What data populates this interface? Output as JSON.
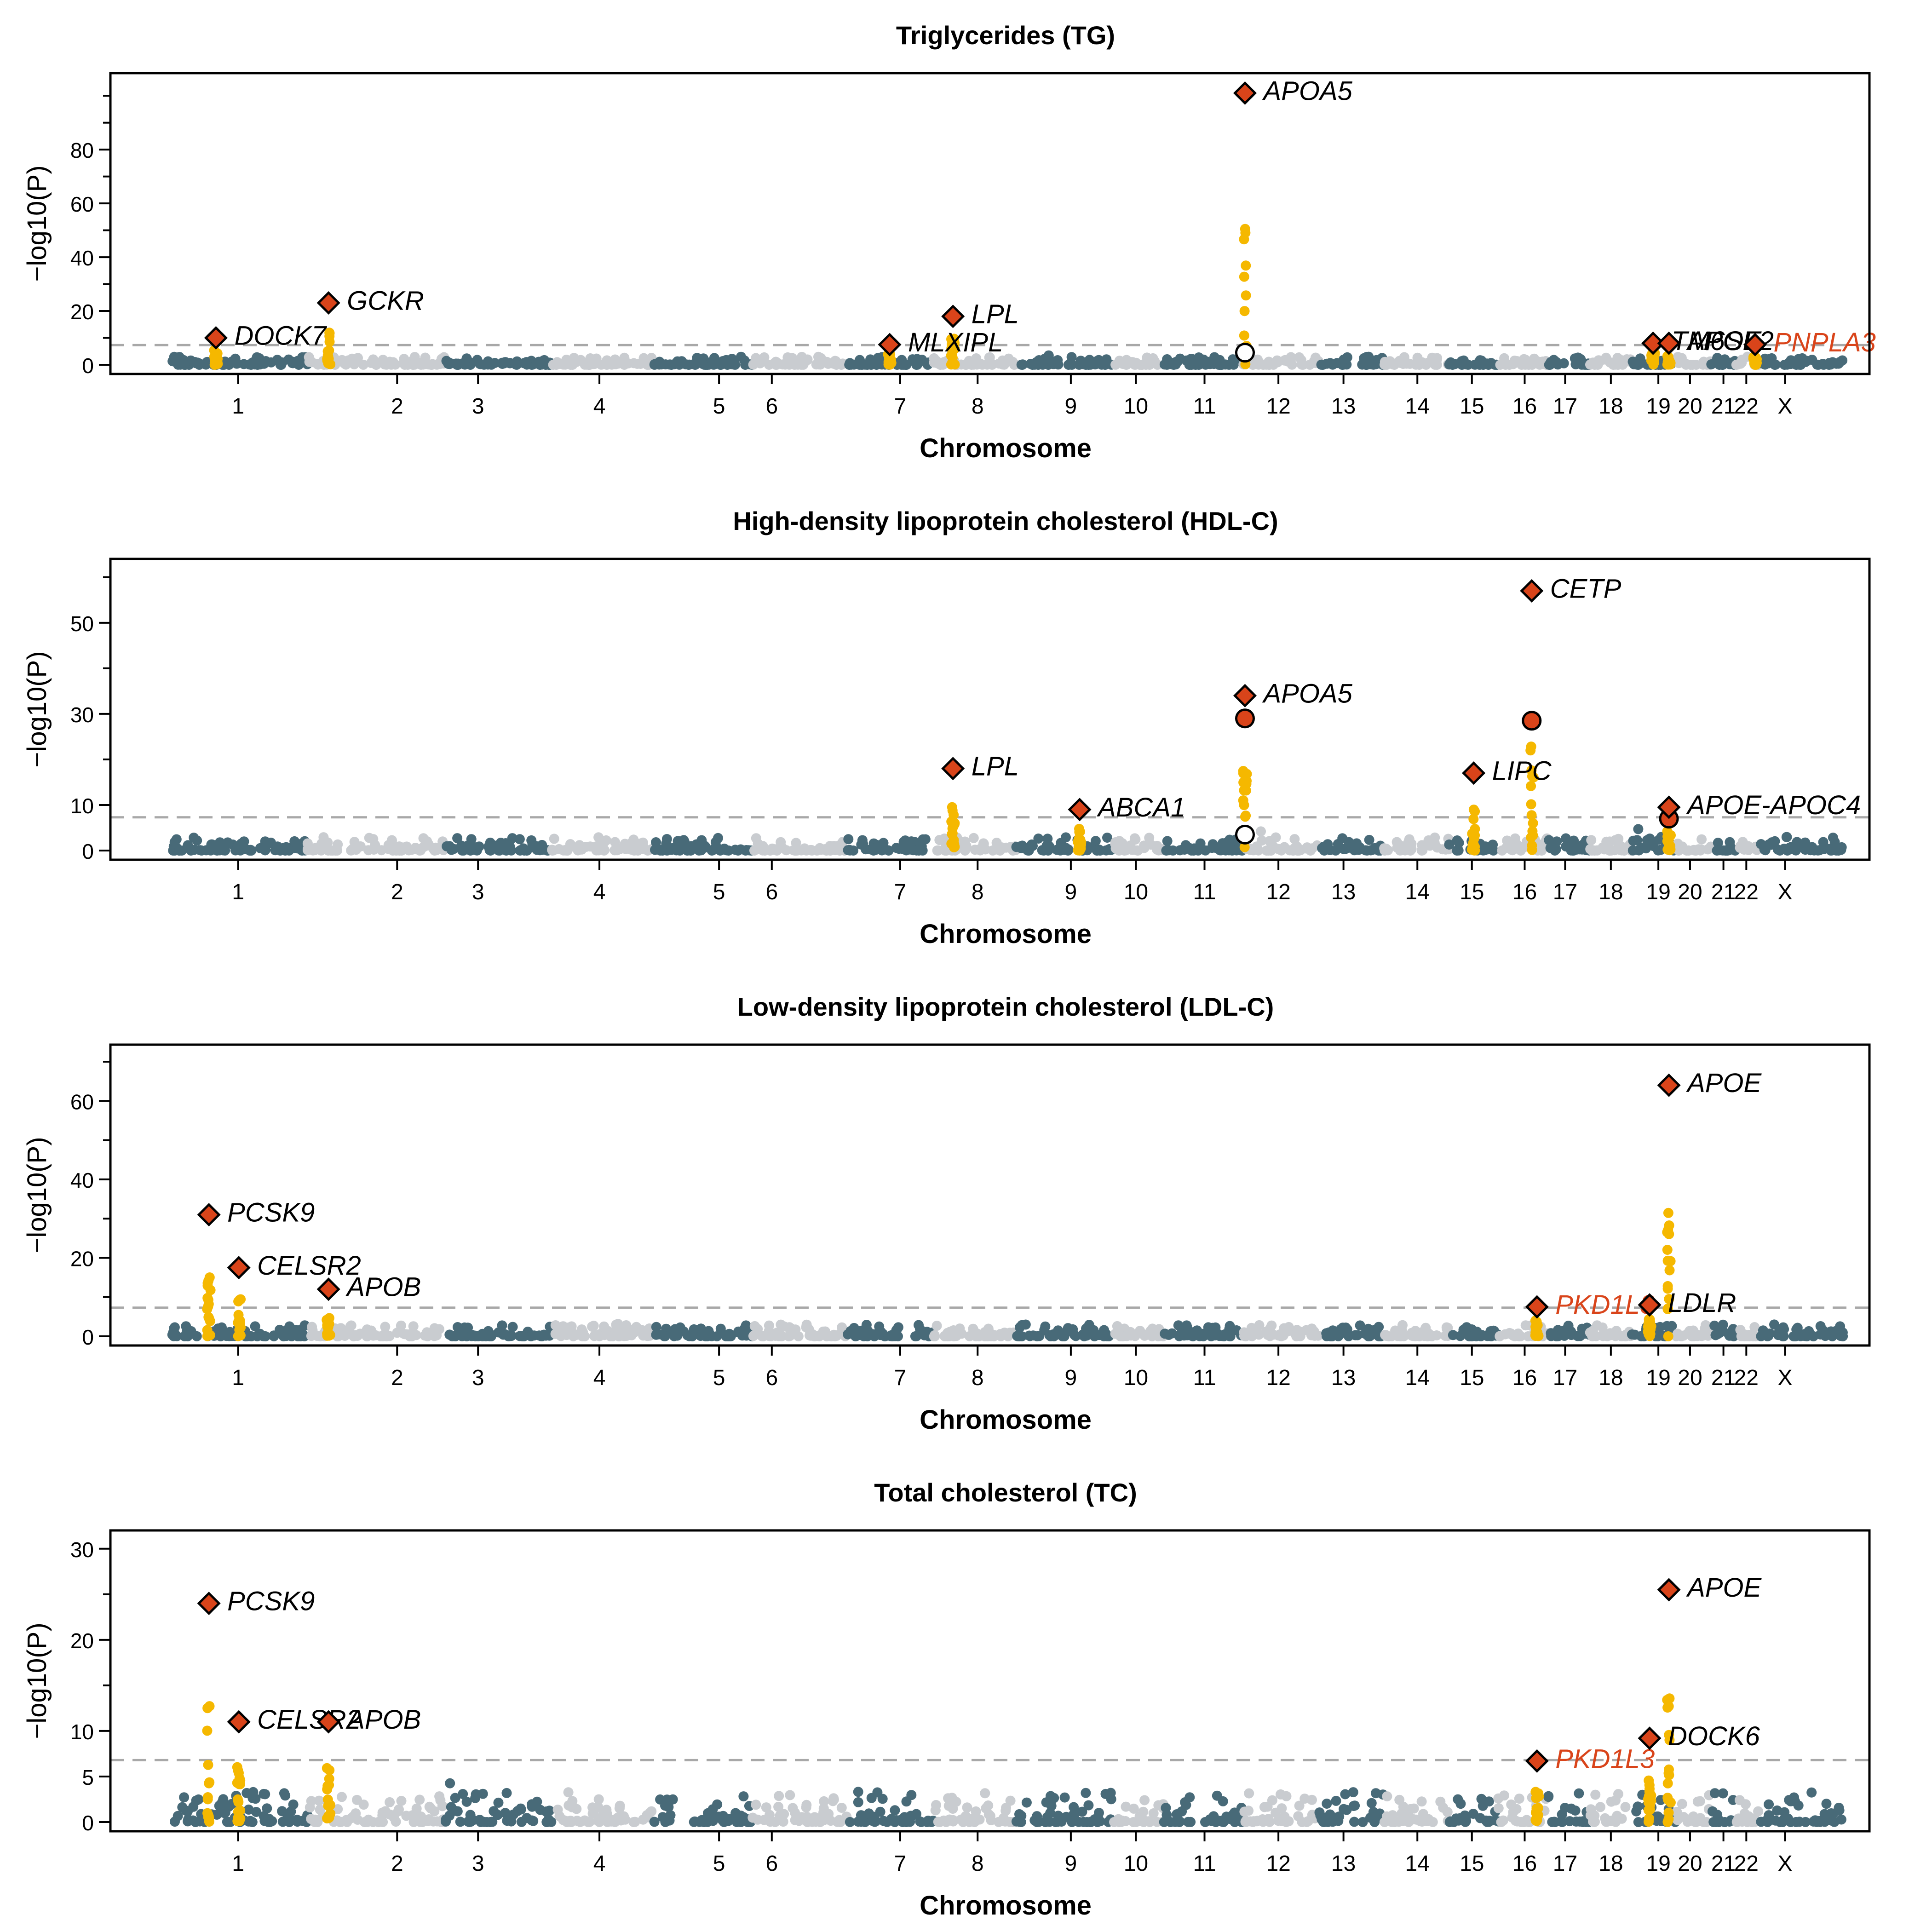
{
  "colors": {
    "dark": "#486a78",
    "light": "#c9ccd0",
    "highlight": "#f5b800",
    "lead": "#d9441a",
    "novel_label": "#d9441a",
    "threshold": "#a8a8a8",
    "axis": "#000000"
  },
  "chart_data": [
    {
      "type": "scatter",
      "subtype": "manhattan",
      "title": "Triglycerides (TG)",
      "xlabel": "Chromosome",
      "ylabel": "−log10(P)",
      "ylim": [
        0,
        105
      ],
      "yticks": [
        0,
        20,
        40,
        60,
        80
      ],
      "threshold": 7.3,
      "genes": [
        {
          "label": "DOCK7",
          "x": 0.06,
          "y": 10,
          "novel": false
        },
        {
          "label": "GCKR",
          "x": 0.124,
          "y": 23,
          "novel": false
        },
        {
          "label": "MLXIPL",
          "x": 0.443,
          "y": 7.5,
          "novel": false
        },
        {
          "label": "LPL",
          "x": 0.479,
          "y": 18,
          "novel": false
        },
        {
          "label": "APOA5",
          "x": 0.645,
          "y": 101,
          "novel": false
        },
        {
          "label": "TM6SF2",
          "x": 0.877,
          "y": 8,
          "novel": false
        },
        {
          "label": "APOE",
          "x": 0.886,
          "y": 8,
          "novel": false
        },
        {
          "label": "PNPLA3",
          "x": 0.935,
          "y": 7.5,
          "novel": true
        }
      ],
      "extra_points": [
        {
          "x": 0.645,
          "y": 4.5,
          "style": "open"
        }
      ]
    },
    {
      "type": "scatter",
      "subtype": "manhattan",
      "title": "High-density lipoprotein cholesterol (HDL-C)",
      "xlabel": "Chromosome",
      "ylabel": "−log10(P)",
      "ylim": [
        0,
        62
      ],
      "yticks": [
        0,
        10,
        30,
        50
      ],
      "threshold": 7.3,
      "genes": [
        {
          "label": "LPL",
          "x": 0.479,
          "y": 18,
          "novel": false
        },
        {
          "label": "ABCA1",
          "x": 0.551,
          "y": 9,
          "novel": false
        },
        {
          "label": "APOA5",
          "x": 0.645,
          "y": 34,
          "novel": false
        },
        {
          "label": "LIPC",
          "x": 0.775,
          "y": 17,
          "novel": false
        },
        {
          "label": "CETP",
          "x": 0.808,
          "y": 57,
          "novel": false
        },
        {
          "label": "APOE-APOC4",
          "x": 0.886,
          "y": 9.5,
          "novel": false
        }
      ],
      "extra_points": [
        {
          "x": 0.645,
          "y": 29,
          "style": "filled"
        },
        {
          "x": 0.645,
          "y": 3.5,
          "style": "open"
        },
        {
          "x": 0.808,
          "y": 28.5,
          "style": "filled"
        },
        {
          "x": 0.886,
          "y": 7,
          "style": "filled"
        }
      ]
    },
    {
      "type": "scatter",
      "subtype": "manhattan",
      "title": "Low-density lipoprotein cholesterol (LDL-C)",
      "xlabel": "Chromosome",
      "ylabel": "−log10(P)",
      "ylim": [
        0,
        72
      ],
      "yticks": [
        0,
        20,
        40,
        60
      ],
      "threshold": 7.3,
      "genes": [
        {
          "label": "PCSK9",
          "x": 0.056,
          "y": 31,
          "novel": false
        },
        {
          "label": "CELSR2",
          "x": 0.073,
          "y": 17.5,
          "novel": false
        },
        {
          "label": "APOB",
          "x": 0.124,
          "y": 12,
          "novel": false
        },
        {
          "label": "PKD1L3",
          "x": 0.811,
          "y": 7.5,
          "novel": true
        },
        {
          "label": "LDLR",
          "x": 0.875,
          "y": 8,
          "novel": false
        },
        {
          "label": "APOE",
          "x": 0.886,
          "y": 64,
          "novel": false
        }
      ],
      "extra_points": []
    },
    {
      "type": "scatter",
      "subtype": "manhattan",
      "title": "Total cholesterol (TC)",
      "xlabel": "Chromosome",
      "ylabel": "−log10(P)",
      "ylim": [
        0,
        31
      ],
      "yticks": [
        0,
        5,
        10,
        20,
        30
      ],
      "threshold": 6.8,
      "genes": [
        {
          "label": "PCSK9",
          "x": 0.056,
          "y": 24,
          "novel": false
        },
        {
          "label": "CELSR2",
          "x": 0.073,
          "y": 11,
          "novel": false
        },
        {
          "label": "APOB",
          "x": 0.124,
          "y": 11,
          "novel": false
        },
        {
          "label": "PKD1L3",
          "x": 0.811,
          "y": 6.7,
          "novel": true
        },
        {
          "label": "DOCK6",
          "x": 0.875,
          "y": 9.2,
          "novel": false
        },
        {
          "label": "APOE",
          "x": 0.886,
          "y": 25.5,
          "novel": false
        }
      ],
      "extra_points": []
    }
  ],
  "chromosomes": [
    {
      "label": "1",
      "tick": 0.0726
    },
    {
      "label": "2",
      "tick": 0.163
    },
    {
      "label": "3",
      "tick": 0.209
    },
    {
      "label": "4",
      "tick": 0.278
    },
    {
      "label": "5",
      "tick": 0.346
    },
    {
      "label": "6",
      "tick": 0.376
    },
    {
      "label": "7",
      "tick": 0.449
    },
    {
      "label": "8",
      "tick": 0.493
    },
    {
      "label": "9",
      "tick": 0.546
    },
    {
      "label": "10",
      "tick": 0.583
    },
    {
      "label": "11",
      "tick": 0.622
    },
    {
      "label": "12",
      "tick": 0.664
    },
    {
      "label": "13",
      "tick": 0.701
    },
    {
      "label": "14",
      "tick": 0.743
    },
    {
      "label": "15",
      "tick": 0.774
    },
    {
      "label": "16",
      "tick": 0.804
    },
    {
      "label": "17",
      "tick": 0.827
    },
    {
      "label": "18",
      "tick": 0.853
    },
    {
      "label": "19",
      "tick": 0.88
    },
    {
      "label": "20",
      "tick": 0.898
    },
    {
      "label": "21",
      "tick": 0.917
    },
    {
      "label": "22",
      "tick": 0.93
    },
    {
      "label": "X",
      "tick": 0.952
    }
  ],
  "chrom_blocks": [
    {
      "start": 0.035,
      "end": 0.079,
      "color": "dark"
    },
    {
      "start": 0.079,
      "end": 0.112,
      "color": "dark"
    },
    {
      "start": 0.112,
      "end": 0.19,
      "color": "light"
    },
    {
      "start": 0.19,
      "end": 0.251,
      "color": "dark"
    },
    {
      "start": 0.251,
      "end": 0.309,
      "color": "light"
    },
    {
      "start": 0.309,
      "end": 0.365,
      "color": "dark"
    },
    {
      "start": 0.365,
      "end": 0.419,
      "color": "light"
    },
    {
      "start": 0.419,
      "end": 0.468,
      "color": "dark"
    },
    {
      "start": 0.468,
      "end": 0.515,
      "color": "light"
    },
    {
      "start": 0.515,
      "end": 0.535,
      "color": "dark"
    },
    {
      "start": 0.535,
      "end": 0.57,
      "color": "dark"
    },
    {
      "start": 0.57,
      "end": 0.599,
      "color": "light"
    },
    {
      "start": 0.599,
      "end": 0.644,
      "color": "dark"
    },
    {
      "start": 0.644,
      "end": 0.687,
      "color": "light"
    },
    {
      "start": 0.687,
      "end": 0.724,
      "color": "dark"
    },
    {
      "start": 0.724,
      "end": 0.761,
      "color": "light"
    },
    {
      "start": 0.761,
      "end": 0.789,
      "color": "dark"
    },
    {
      "start": 0.789,
      "end": 0.817,
      "color": "light"
    },
    {
      "start": 0.817,
      "end": 0.841,
      "color": "dark"
    },
    {
      "start": 0.841,
      "end": 0.865,
      "color": "light"
    },
    {
      "start": 0.865,
      "end": 0.89,
      "color": "dark"
    },
    {
      "start": 0.89,
      "end": 0.91,
      "color": "light"
    },
    {
      "start": 0.91,
      "end": 0.924,
      "color": "dark"
    },
    {
      "start": 0.924,
      "end": 0.938,
      "color": "light"
    },
    {
      "start": 0.938,
      "end": 0.985,
      "color": "dark"
    }
  ]
}
